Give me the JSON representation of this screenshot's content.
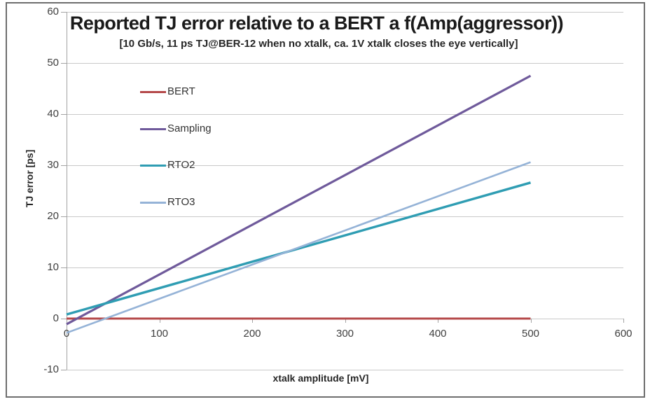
{
  "window": {
    "background": "#FFFFFF",
    "border_color": "#6E6E6E"
  },
  "styles": {
    "grid_color": "#C9C9C9",
    "axis_color": "#A3A3A3",
    "tick_label_color": "#3F3F3F",
    "title_color": "#1A1A1A"
  },
  "chart_data": {
    "type": "line",
    "title": "Reported TJ error relative to a BERT a f(Amp(aggressor))",
    "subtitle": "[10 Gb/s, 11 ps TJ@BER-12 when no xtalk, ca. 1V xtalk closes the eye vertically]",
    "xlabel": "xtalk amplitude [mV]",
    "ylabel": "TJ error [ps]",
    "xlim": [
      0,
      600
    ],
    "ylim": [
      -10,
      60
    ],
    "x_ticks": [
      0,
      100,
      200,
      300,
      400,
      500,
      600
    ],
    "y_ticks": [
      60,
      50,
      40,
      30,
      20,
      10,
      0,
      -10
    ],
    "grid": "horizontal-only",
    "legend_position": "inside upper-left",
    "series": [
      {
        "name": "BERT",
        "color": "#B5494A",
        "stroke_width": 3,
        "x": [
          0,
          500
        ],
        "y": [
          0,
          0
        ]
      },
      {
        "name": "Sampling",
        "color": "#6F5A9B",
        "stroke_width": 3.2,
        "x": [
          0,
          500
        ],
        "y": [
          -1.1,
          47.5
        ]
      },
      {
        "name": "RTO2",
        "color": "#2F9DB3",
        "stroke_width": 3.4,
        "x": [
          0,
          500
        ],
        "y": [
          0.8,
          26.6
        ]
      },
      {
        "name": "RTO3",
        "color": "#95B3D7",
        "stroke_width": 2.6,
        "x": [
          0,
          500
        ],
        "y": [
          -2.8,
          30.6
        ]
      }
    ]
  }
}
